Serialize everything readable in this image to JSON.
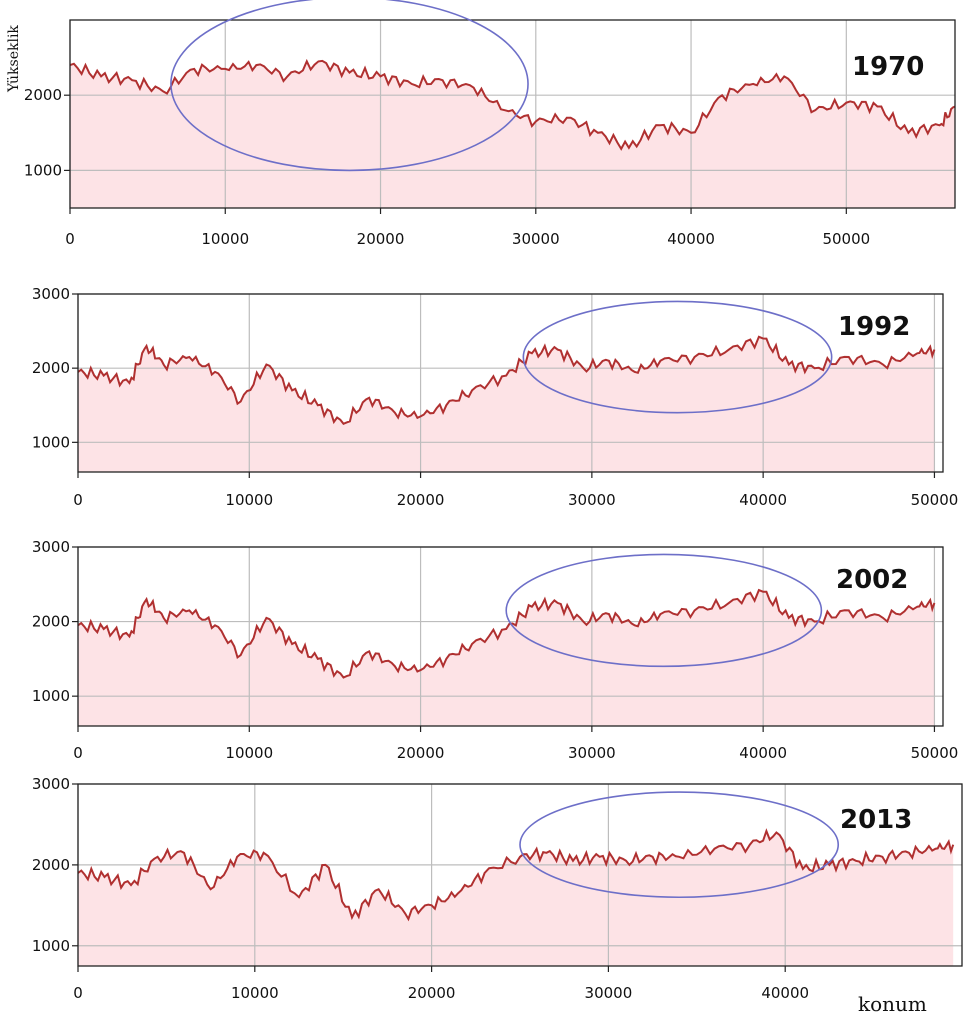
{
  "labels": {
    "ylabel": "Yükseklik",
    "xlabel": "konum"
  },
  "colors": {
    "line": "#b03030",
    "fill": "#fde3e6",
    "ellipse": "#6d6fc8",
    "grid": "#bdbdbd",
    "frame": "#222222"
  },
  "chart_data": [
    {
      "type": "area",
      "title": "1970",
      "xlim": [
        0,
        57000
      ],
      "ylim": [
        500,
        3000
      ],
      "xticks": [
        0,
        10000,
        20000,
        30000,
        40000,
        50000
      ],
      "yticks": [
        1000,
        2000
      ],
      "grid": true,
      "highlight_ellipse": {
        "cx": 18000,
        "cy": 2150,
        "rx": 11500,
        "ry": 1150
      },
      "x": [
        0,
        2000,
        4000,
        6000,
        8000,
        10000,
        12000,
        14000,
        16000,
        18000,
        20000,
        22000,
        24000,
        26000,
        28000,
        30000,
        32000,
        34000,
        36000,
        38000,
        40000,
        42000,
        44000,
        46000,
        48000,
        50000,
        52000,
        54000,
        56000,
        57000
      ],
      "values": [
        2400,
        2250,
        2200,
        2050,
        2350,
        2350,
        2400,
        2250,
        2450,
        2300,
        2250,
        2150,
        2200,
        2100,
        1800,
        1650,
        1700,
        1500,
        1300,
        1600,
        1500,
        2000,
        2150,
        2250,
        1800,
        1900,
        1850,
        1500,
        1600,
        1850
      ]
    },
    {
      "type": "area",
      "title": "1992",
      "xlim": [
        0,
        50500
      ],
      "ylim": [
        600,
        3000
      ],
      "xticks": [
        0,
        10000,
        20000,
        30000,
        40000,
        50000
      ],
      "yticks": [
        1000,
        2000,
        3000
      ],
      "grid": true,
      "highlight_ellipse": {
        "cx": 35000,
        "cy": 2150,
        "rx": 9000,
        "ry": 750
      },
      "x": [
        0,
        1500,
        3000,
        4000,
        5000,
        6500,
        8000,
        9500,
        11000,
        12500,
        14000,
        15500,
        17000,
        18500,
        20000,
        21500,
        23000,
        25000,
        26500,
        28000,
        29500,
        31000,
        32500,
        34000,
        36000,
        38000,
        40000,
        41500,
        43000,
        45000,
        47000,
        49000,
        50000
      ],
      "values": [
        1950,
        1900,
        1800,
        2300,
        2050,
        2150,
        1950,
        1550,
        2050,
        1700,
        1500,
        1250,
        1600,
        1400,
        1350,
        1500,
        1700,
        1900,
        2200,
        2250,
        2000,
        2100,
        1950,
        2100,
        2150,
        2250,
        2400,
        2050,
        2000,
        2150,
        2050,
        2200,
        2250
      ]
    },
    {
      "type": "area",
      "title": "2002",
      "xlim": [
        0,
        50500
      ],
      "ylim": [
        600,
        3000
      ],
      "xticks": [
        0,
        10000,
        20000,
        30000,
        40000,
        50000
      ],
      "yticks": [
        1000,
        2000,
        3000
      ],
      "grid": true,
      "highlight_ellipse": {
        "cx": 34200,
        "cy": 2150,
        "rx": 9200,
        "ry": 750
      },
      "x": [
        0,
        1500,
        3000,
        4000,
        5000,
        6500,
        8000,
        9500,
        11000,
        12500,
        14000,
        15500,
        17000,
        18500,
        20000,
        21500,
        23000,
        25000,
        26500,
        28000,
        29500,
        31000,
        32500,
        34000,
        36000,
        38000,
        40000,
        41500,
        43000,
        45000,
        47000,
        49000,
        50000
      ],
      "values": [
        1950,
        1900,
        1800,
        2300,
        2050,
        2150,
        1950,
        1550,
        2050,
        1700,
        1500,
        1250,
        1600,
        1400,
        1350,
        1500,
        1700,
        1900,
        2200,
        2250,
        2000,
        2100,
        1950,
        2100,
        2150,
        2250,
        2400,
        2050,
        2000,
        2150,
        2050,
        2200,
        2250
      ]
    },
    {
      "type": "area",
      "title": "2013",
      "xlim": [
        0,
        50000
      ],
      "ylim": [
        750,
        3000
      ],
      "xticks": [
        0,
        10000,
        20000,
        30000,
        40000
      ],
      "yticks": [
        1000,
        2000,
        3000
      ],
      "grid": true,
      "highlight_ellipse": {
        "cx": 34000,
        "cy": 2250,
        "rx": 9000,
        "ry": 650
      },
      "x": [
        0,
        1500,
        3000,
        4500,
        6000,
        7500,
        9000,
        10500,
        12500,
        14000,
        15500,
        17000,
        18500,
        20000,
        21500,
        23000,
        25000,
        26500,
        28000,
        29500,
        31000,
        32500,
        34000,
        36000,
        38000,
        39500,
        41000,
        42500,
        44000,
        45500,
        47000,
        48500,
        49500
      ],
      "values": [
        1900,
        1850,
        1750,
        2100,
        2150,
        1700,
        2100,
        2150,
        1600,
        2000,
        1350,
        1700,
        1400,
        1500,
        1650,
        1900,
        2100,
        2150,
        2050,
        2100,
        2050,
        2100,
        2100,
        2200,
        2250,
        2400,
        1950,
        2000,
        2050,
        2100,
        2150,
        2200,
        2250
      ]
    }
  ]
}
